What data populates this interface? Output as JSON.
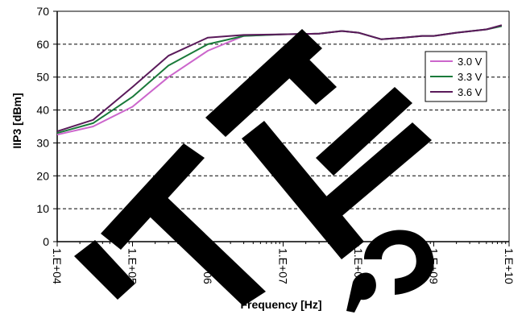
{
  "chart_data": {
    "type": "line",
    "title": "",
    "xlabel": "Frequency [Hz]",
    "ylabel": "IIP3 [dBm]",
    "x_scale": "log",
    "xlim": [
      10000,
      10000000000
    ],
    "ylim": [
      0,
      70
    ],
    "y_ticks": [
      "0",
      "10",
      "20",
      "30",
      "40",
      "50",
      "60",
      "70"
    ],
    "x_ticks": [
      {
        "value": 10000,
        "label": "1.E+04"
      },
      {
        "value": 100000,
        "label": "1.E+05"
      },
      {
        "value": 1000000,
        "label": "1.E+06"
      },
      {
        "value": 10000000,
        "label": "1.E+07"
      },
      {
        "value": 100000000,
        "label": "1.E+08"
      },
      {
        "value": 1000000000,
        "label": "1.E+09"
      },
      {
        "value": 10000000000,
        "label": "1.E+10"
      }
    ],
    "grid": "horizontal dashed",
    "legend_position": "right",
    "series": [
      {
        "name": "3.0 V",
        "color": "#cc66cc",
        "x": [
          10000,
          30000,
          100000,
          300000,
          1000000,
          3000000,
          10000000,
          30000000,
          60000000,
          100000000,
          200000000,
          400000000,
          700000000,
          1000000000,
          2000000000,
          5000000000,
          8000000000
        ],
        "y": [
          32.5,
          35,
          41,
          50,
          58,
          62.5,
          63,
          63.2,
          64,
          63.5,
          61.5,
          62,
          62.5,
          62.5,
          63.5,
          64.5,
          65.5
        ]
      },
      {
        "name": "3.3 V",
        "color": "#1a7a3a",
        "x": [
          10000,
          30000,
          100000,
          300000,
          1000000,
          3000000,
          10000000,
          30000000,
          60000000,
          100000000,
          200000000,
          400000000,
          700000000,
          1000000000,
          2000000000,
          5000000000,
          8000000000
        ],
        "y": [
          33,
          36,
          44,
          53.5,
          60,
          62.5,
          63,
          63.2,
          64,
          63.5,
          61.5,
          62,
          62.5,
          62.5,
          63.5,
          64.5,
          65.5
        ]
      },
      {
        "name": "3.6 V",
        "color": "#5a1a5a",
        "x": [
          10000,
          30000,
          100000,
          300000,
          1000000,
          3000000,
          10000000,
          30000000,
          60000000,
          100000000,
          200000000,
          400000000,
          700000000,
          1000000000,
          2000000000,
          5000000000,
          8000000000
        ],
        "y": [
          33.5,
          37,
          47,
          56.5,
          62,
          62.8,
          63,
          63.2,
          64,
          63.5,
          61.5,
          62,
          62.5,
          62.5,
          63.5,
          64.5,
          65.8
        ]
      }
    ]
  }
}
